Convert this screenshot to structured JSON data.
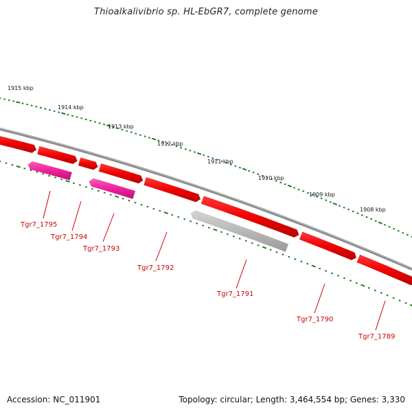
{
  "title": "Thioalkalivibrio sp. HL-EbGR7, complete genome",
  "footer": {
    "accession": "Accession: NC_011901",
    "topology": "Topology: circular; Length: 3,464,554 bp; Genes: 3,330"
  },
  "colors": {
    "background": "#ffffff",
    "backbone": "#8a8a8a",
    "gene_red": "#f20000",
    "gene_magenta": "#f0209a",
    "gene_gray": "#b8b8b8",
    "label_red": "#cc0000",
    "tick_green": "#1f7a1f"
  },
  "scale": {
    "unit": "kbp",
    "labels": [
      "1915 kbp",
      "1914 kbp",
      "1913 kbp",
      "1912 kbp",
      "1911 kbp",
      "1910 kbp",
      "1909 kbp",
      "1908 kbp"
    ]
  },
  "genes": [
    {
      "locus": "Tgr7_1795",
      "color": "magenta",
      "strand": "-",
      "label": "Tgr7_1795"
    },
    {
      "locus": "Tgr7_1794",
      "color": "red",
      "strand": "+",
      "label": "Tgr7_1794"
    },
    {
      "locus": "Tgr7_1793",
      "color": "magenta",
      "strand": "-",
      "label": "Tgr7_1793"
    },
    {
      "locus": "Tgr7_1792",
      "color": "red",
      "strand": "+",
      "label": "Tgr7_1792"
    },
    {
      "locus": "Tgr7_1791",
      "color": "gray",
      "strand": "-",
      "label": "Tgr7_1791"
    },
    {
      "locus": "Tgr7_1790",
      "color": "red",
      "strand": "+",
      "label": "Tgr7_1790"
    },
    {
      "locus": "Tgr7_1789",
      "color": "red",
      "strand": "+",
      "label": "Tgr7_1789"
    }
  ],
  "unlabeled_forward_genes": 3
}
